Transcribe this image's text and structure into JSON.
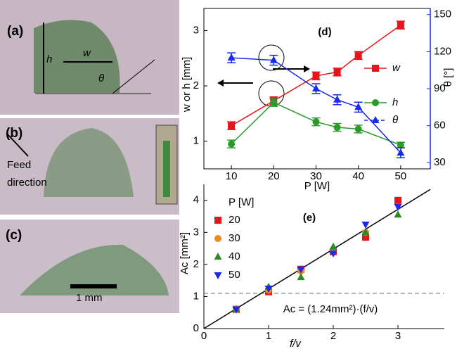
{
  "photos": {
    "a": {
      "label": "(a)",
      "h": "h",
      "w": "w",
      "theta": "θ"
    },
    "b": {
      "label": "(b)",
      "feed": "Feed",
      "direction": "direction"
    },
    "c": {
      "label": "(c)",
      "scale": "1 mm"
    }
  },
  "chart_data": [
    {
      "type": "line",
      "title": "(d)",
      "x_label": "P [W]",
      "y_label": "w or h [mm]",
      "y2_label": "θ [°]",
      "x": [
        10,
        20,
        30,
        35,
        40,
        50
      ],
      "xlim": [
        3.5,
        57
      ],
      "xticks": [
        10,
        20,
        30,
        40,
        50
      ],
      "ylim": [
        0.5,
        3.4
      ],
      "yticks": [
        1,
        2,
        3
      ],
      "y2lim": [
        25,
        155
      ],
      "y2ticks": [
        30,
        60,
        90,
        120,
        150
      ],
      "series": [
        {
          "name": "w",
          "color": "#e8141c",
          "marker": "square",
          "values": [
            1.28,
            1.73,
            2.18,
            2.25,
            2.55,
            3.1
          ],
          "errors": [
            0.07,
            0.07,
            0.07,
            0.07,
            0.07,
            0.07
          ]
        },
        {
          "name": "h",
          "color": "#2a9a2a",
          "marker": "circle",
          "values": [
            0.95,
            1.7,
            1.35,
            1.25,
            1.22,
            0.93
          ],
          "errors": [
            0.07,
            0.07,
            0.07,
            0.07,
            0.07,
            0.05
          ]
        },
        {
          "name": "θ",
          "color": "#1a2ae8",
          "marker": "triangle",
          "axis": "y2",
          "values": [
            115,
            113,
            90,
            81,
            75,
            38
          ],
          "errors": [
            4,
            4,
            4,
            4,
            4,
            4
          ]
        }
      ]
    },
    {
      "type": "scatter",
      "title": "(e)",
      "x_label": "f/v",
      "y_label": "Ac [mm²]",
      "legend_title": "P [W]",
      "annotation": "Ac = (1.24mm²)·(f/v)",
      "fit_slope": 1.24,
      "hline": 1.1,
      "xlim": [
        0,
        3.5
      ],
      "xticks": [
        0,
        1,
        2,
        3
      ],
      "ylim": [
        0,
        4.5
      ],
      "yticks": [
        0,
        1,
        2,
        3,
        4
      ],
      "series": [
        {
          "name": "20",
          "color": "#e8141c",
          "marker": "square",
          "x": [
            0.5,
            1,
            1.5,
            2,
            2.5,
            3
          ],
          "values": [
            0.6,
            1.15,
            1.85,
            2.4,
            2.85,
            4.0
          ]
        },
        {
          "name": "30",
          "color": "#f08a1c",
          "marker": "circle",
          "x": [
            0.5,
            1,
            1.5,
            2,
            2.5
          ],
          "values": [
            0.6,
            1.2,
            1.8,
            2.45,
            3.0
          ]
        },
        {
          "name": "40",
          "color": "#2a8a2a",
          "marker": "triangle",
          "x": [
            0.5,
            1,
            1.5,
            2,
            2.5,
            3
          ],
          "values": [
            0.6,
            1.3,
            1.6,
            2.55,
            3.0,
            3.55
          ]
        },
        {
          "name": "50",
          "color": "#1a2ae8",
          "marker": "triangle-down",
          "x": [
            0.5,
            1,
            1.5,
            2,
            2.5,
            3
          ],
          "values": [
            0.6,
            1.25,
            1.85,
            2.35,
            3.25,
            3.8
          ]
        }
      ]
    }
  ]
}
